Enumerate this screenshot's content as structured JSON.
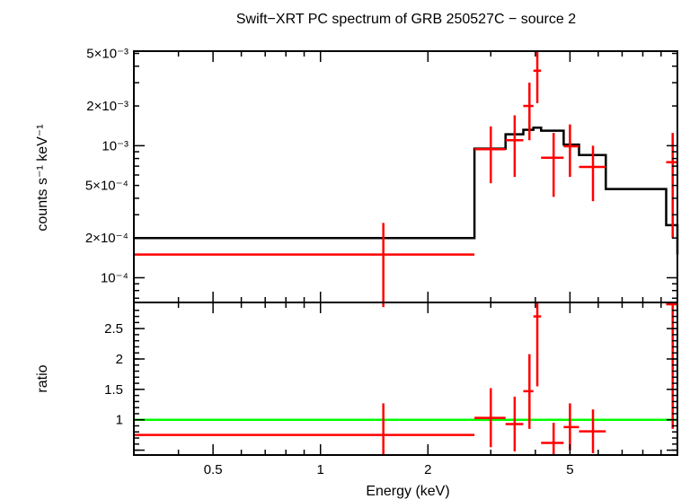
{
  "chart_data": {
    "type": "line",
    "title": "Swift−XRT PC spectrum of GRB 250527C − source 2",
    "xlabel": "Energy (keV)",
    "x_scale": "log",
    "xlim": [
      0.3,
      10
    ],
    "x_ticks": [
      {
        "value": 0.5,
        "label": "0.5"
      },
      {
        "value": 1,
        "label": "1"
      },
      {
        "value": 2,
        "label": "2"
      },
      {
        "value": 5,
        "label": "5"
      }
    ],
    "top_panel": {
      "ylabel": "counts s⁻¹ keV⁻¹",
      "y_scale": "log",
      "ylim": [
        6.5e-05,
        0.0052
      ],
      "y_ticks": [
        {
          "value": 0.005,
          "label": "5×10⁻³"
        },
        {
          "value": 0.002,
          "label": "2×10⁻³"
        },
        {
          "value": 0.001,
          "label": "10⁻³"
        },
        {
          "value": 0.0005,
          "label": "5×10⁻⁴"
        },
        {
          "value": 0.0002,
          "label": "2×10⁻⁴"
        },
        {
          "value": 0.0001,
          "label": "10⁻⁴"
        }
      ],
      "model": {
        "color": "#000000",
        "bins": [
          {
            "x0": 0.3,
            "x1": 2.7,
            "y": 0.0002
          },
          {
            "x0": 2.7,
            "x1": 3.3,
            "y": 0.00095
          },
          {
            "x0": 3.3,
            "x1": 3.7,
            "y": 0.00122
          },
          {
            "x0": 3.7,
            "x1": 3.95,
            "y": 0.00132
          },
          {
            "x0": 3.95,
            "x1": 4.15,
            "y": 0.00137
          },
          {
            "x0": 4.15,
            "x1": 4.8,
            "y": 0.0013
          },
          {
            "x0": 4.8,
            "x1": 5.3,
            "y": 0.00102
          },
          {
            "x0": 5.3,
            "x1": 6.3,
            "y": 0.00085
          },
          {
            "x0": 6.3,
            "x1": 9.3,
            "y": 0.00047
          },
          {
            "x0": 9.3,
            "x1": 10,
            "y": 0.00025
          }
        ]
      },
      "data": {
        "color": "#ff0000",
        "points": [
          {
            "x": 1.5,
            "x0": 0.3,
            "x1": 2.7,
            "y": 0.00015,
            "ylo": 6e-05,
            "yhi": 0.00026
          },
          {
            "x": 3.0,
            "x0": 2.7,
            "x1": 3.3,
            "y": 0.00094,
            "ylo": 0.00052,
            "yhi": 0.0014
          },
          {
            "x": 3.5,
            "x0": 3.3,
            "x1": 3.7,
            "y": 0.0011,
            "ylo": 0.00058,
            "yhi": 0.0017
          },
          {
            "x": 3.85,
            "x0": 3.7,
            "x1": 3.95,
            "y": 0.002,
            "ylo": 0.0011,
            "yhi": 0.003
          },
          {
            "x": 4.05,
            "x0": 3.95,
            "x1": 4.15,
            "y": 0.0037,
            "ylo": 0.0021,
            "yhi": 0.0052
          },
          {
            "x": 4.5,
            "x0": 4.15,
            "x1": 4.8,
            "y": 0.00081,
            "ylo": 0.00041,
            "yhi": 0.00125
          },
          {
            "x": 5.0,
            "x0": 4.8,
            "x1": 5.3,
            "y": 0.00099,
            "ylo": 0.00058,
            "yhi": 0.00145
          },
          {
            "x": 5.8,
            "x0": 5.3,
            "x1": 6.3,
            "y": 0.00069,
            "ylo": 0.00038,
            "yhi": 0.001
          },
          {
            "x": 9.7,
            "x0": 9.3,
            "x1": 10,
            "y": 0.00075,
            "ylo": 0.0002,
            "yhi": 0.00125
          }
        ]
      }
    },
    "bottom_panel": {
      "ylabel": "ratio",
      "y_scale": "linear",
      "ylim": [
        0.42,
        2.93
      ],
      "y_ticks": [
        {
          "value": 1,
          "label": "1"
        },
        {
          "value": 1.5,
          "label": "1.5"
        },
        {
          "value": 2,
          "label": "2"
        },
        {
          "value": 2.5,
          "label": "2.5"
        }
      ],
      "reference_line": {
        "y": 1,
        "color": "#00ff00"
      },
      "data": {
        "color": "#ff0000",
        "points": [
          {
            "x": 1.5,
            "x0": 0.3,
            "x1": 2.7,
            "y": 0.75,
            "ylo": 0.42,
            "yhi": 1.27
          },
          {
            "x": 3.0,
            "x0": 2.7,
            "x1": 3.3,
            "y": 1.03,
            "ylo": 0.55,
            "yhi": 1.52
          },
          {
            "x": 3.5,
            "x0": 3.3,
            "x1": 3.7,
            "y": 0.93,
            "ylo": 0.48,
            "yhi": 1.38
          },
          {
            "x": 3.85,
            "x0": 3.7,
            "x1": 3.95,
            "y": 1.47,
            "ylo": 0.85,
            "yhi": 2.08
          },
          {
            "x": 4.05,
            "x0": 3.95,
            "x1": 4.15,
            "y": 2.7,
            "ylo": 1.55,
            "yhi": 2.93
          },
          {
            "x": 4.5,
            "x0": 4.15,
            "x1": 4.8,
            "y": 0.62,
            "ylo": 0.42,
            "yhi": 0.95
          },
          {
            "x": 5.0,
            "x0": 4.8,
            "x1": 5.3,
            "y": 0.88,
            "ylo": 0.5,
            "yhi": 1.27
          },
          {
            "x": 5.8,
            "x0": 5.3,
            "x1": 6.3,
            "y": 0.81,
            "ylo": 0.45,
            "yhi": 1.17
          },
          {
            "x": 9.7,
            "x0": 9.3,
            "x1": 10,
            "y": 2.9,
            "ylo": 0.85,
            "yhi": 2.93
          }
        ]
      }
    }
  }
}
